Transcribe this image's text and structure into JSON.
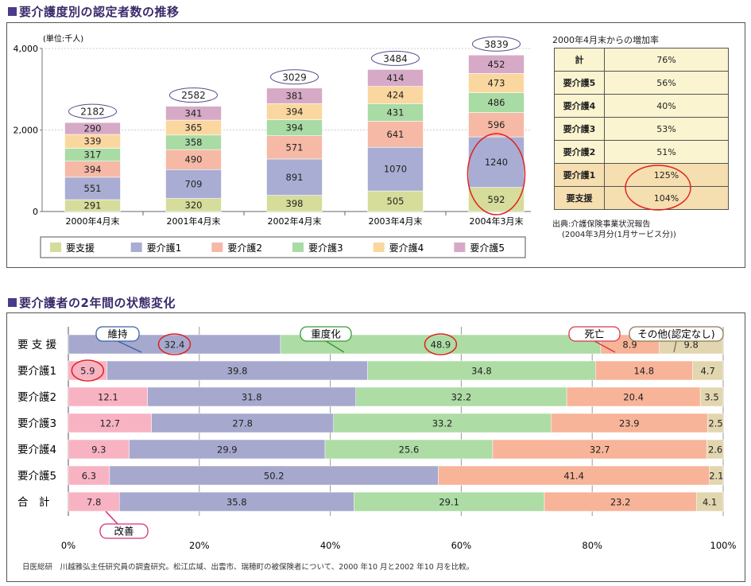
{
  "title1": "要介護度別の認定者数の推移",
  "title2": "要介護者の2年間の状態変化",
  "chart_data": [
    {
      "type": "bar",
      "stacked": true,
      "unit_label": "(単位:千人)",
      "categories": [
        "2000年4月末",
        "2001年4月末",
        "2002年4月末",
        "2003年4月末",
        "2004年3月末"
      ],
      "series": [
        {
          "name": "要支援",
          "values": [
            291,
            320,
            398,
            505,
            592
          ],
          "color": "#d6dc9a"
        },
        {
          "name": "要介護1",
          "values": [
            551,
            709,
            891,
            1070,
            1240
          ],
          "color": "#a9add3"
        },
        {
          "name": "要介護2",
          "values": [
            394,
            490,
            571,
            641,
            596
          ],
          "color": "#f6b9a6"
        },
        {
          "name": "要介護3",
          "values": [
            317,
            358,
            394,
            431,
            486
          ],
          "color": "#a9dba4"
        },
        {
          "name": "要介護4",
          "values": [
            339,
            365,
            394,
            424,
            473
          ],
          "color": "#fbd7a0"
        },
        {
          "name": "要介護5",
          "values": [
            290,
            341,
            381,
            414,
            452
          ],
          "color": "#d6aac6"
        }
      ],
      "totals": [
        2182,
        2582,
        3029,
        3484,
        3839
      ],
      "yticks": [
        "0",
        "2,000",
        "4,000"
      ],
      "ylim": [
        0,
        4000
      ],
      "highlight": {
        "category_index": 4,
        "series": [
          "要支援",
          "要介護1"
        ]
      }
    },
    {
      "type": "table",
      "title": "2000年4月末からの増加率",
      "rows": [
        {
          "label": "計",
          "value": "76%"
        },
        {
          "label": "要介護5",
          "value": "56%"
        },
        {
          "label": "要介護4",
          "value": "40%"
        },
        {
          "label": "要介護3",
          "value": "53%"
        },
        {
          "label": "要介護2",
          "value": "51%"
        },
        {
          "label": "要介護1",
          "value": "125%",
          "circled": true
        },
        {
          "label": "要支援",
          "value": "104%",
          "circled": true
        }
      ],
      "source_line1": "出典:介護保険事業状況報告",
      "source_line2": "(2004年3月分(1月サービス分))"
    },
    {
      "type": "bar",
      "orientation": "horizontal",
      "stacked_percent": true,
      "categories": [
        "要 支 援",
        "要介護1",
        "要介護2",
        "要介護3",
        "要介護4",
        "要介護5",
        "合　計"
      ],
      "series": [
        {
          "name": "改善",
          "values": [
            null,
            5.9,
            12.1,
            12.7,
            9.3,
            6.3,
            7.8
          ],
          "color": "#f8b3c3"
        },
        {
          "name": "維持",
          "values": [
            32.4,
            39.8,
            31.8,
            27.8,
            29.9,
            50.2,
            35.8
          ],
          "color": "#a6a9cd"
        },
        {
          "name": "重度化",
          "values": [
            48.9,
            34.8,
            32.2,
            33.2,
            25.6,
            null,
            29.1
          ],
          "color": "#addca5"
        },
        {
          "name": "死亡",
          "values": [
            8.9,
            14.8,
            20.4,
            23.9,
            32.7,
            41.4,
            23.2
          ],
          "color": "#f8b498"
        },
        {
          "name": "その他(認定なし)",
          "values": [
            9.8,
            4.7,
            3.5,
            2.5,
            2.6,
            2.1,
            4.1
          ],
          "color": "#e2d6b0"
        }
      ],
      "xticks": [
        "0%",
        "20%",
        "40%",
        "60%",
        "80%",
        "100%"
      ],
      "xlim": [
        0,
        100
      ],
      "circled": [
        {
          "row": 0,
          "series": "維持"
        },
        {
          "row": 0,
          "series": "重度化"
        },
        {
          "row": 1,
          "series": "改善"
        }
      ],
      "footnote": "日医総研　川越雅弘主任研究員の調査研究。松江広域、出雲市、瑞穂町の被保険者について、2000 年10 月と2002 年10 月を比較。"
    }
  ]
}
